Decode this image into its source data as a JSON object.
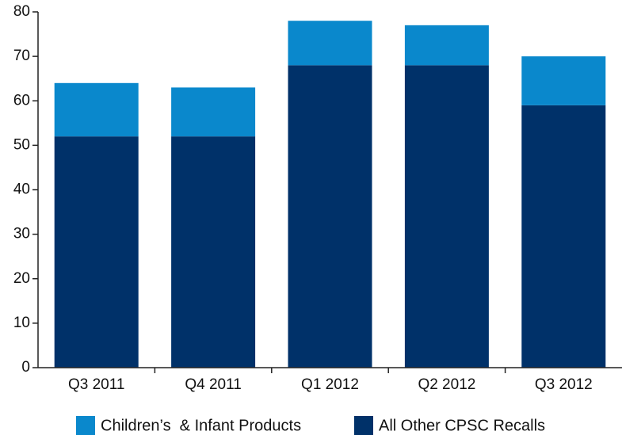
{
  "chart_data": {
    "type": "stacked_bar",
    "categories": [
      "Q3 2011",
      "Q4 2011",
      "Q1 2012",
      "Q2 2012",
      "Q3 2012"
    ],
    "series": [
      {
        "name": "All Other CPSC Recalls",
        "color": "#003169",
        "values": [
          52,
          52,
          68,
          68,
          59
        ]
      },
      {
        "name": "Children’s  & Infant Products",
        "color": "#0a88cc",
        "values": [
          12,
          11,
          10,
          9,
          11
        ]
      }
    ],
    "ylim": [
      0,
      80
    ],
    "yticks": [
      0,
      10,
      20,
      30,
      40,
      50,
      60,
      70,
      80
    ],
    "grid": false,
    "legend_order": [
      1,
      0
    ]
  }
}
